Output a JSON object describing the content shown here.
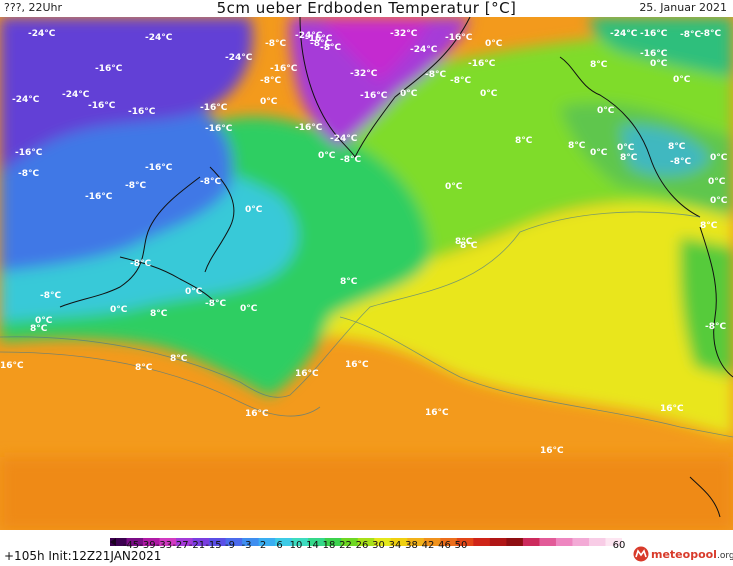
{
  "header": {
    "left_text": "???, 22Uhr",
    "title": "5cm ueber Erdboden Temperatur [°C]",
    "date": "25. Januar 2021"
  },
  "map": {
    "labels": [
      {
        "text": "-24°C"
      },
      {
        "text": "-24°C"
      },
      {
        "text": "-24°C"
      },
      {
        "text": "-16°C"
      },
      {
        "text": "-24°C"
      },
      {
        "text": "-24°C"
      },
      {
        "text": "-16°C"
      },
      {
        "text": "-16°C"
      },
      {
        "text": "-16°C"
      },
      {
        "text": "-16°C"
      },
      {
        "text": "-16°C"
      },
      {
        "text": "-8°C"
      },
      {
        "text": "-16°C"
      },
      {
        "text": "-8°C"
      },
      {
        "text": "-8°C"
      },
      {
        "text": "-16°C"
      },
      {
        "text": "-8°C"
      },
      {
        "text": "-24°C"
      },
      {
        "text": "-16°C"
      },
      {
        "text": "-8°C"
      },
      {
        "text": "-16°C"
      },
      {
        "text": "0°C"
      },
      {
        "text": "-16°C"
      },
      {
        "text": "-24°C"
      },
      {
        "text": "0°C"
      },
      {
        "text": "-8°C"
      },
      {
        "text": "-32°C"
      },
      {
        "text": "-24°C"
      },
      {
        "text": "-16°C"
      },
      {
        "text": "0°C"
      },
      {
        "text": "-32°C"
      },
      {
        "text": "-8°C"
      },
      {
        "text": "-8°C"
      },
      {
        "text": "-16°C"
      },
      {
        "text": "0°C"
      },
      {
        "text": "0°C"
      },
      {
        "text": "-16°C"
      },
      {
        "text": "-24°C"
      },
      {
        "text": "-16°C"
      },
      {
        "text": "-8°C"
      },
      {
        "text": "-8°C"
      },
      {
        "text": "-16°C"
      },
      {
        "text": "0°C"
      },
      {
        "text": "8°C"
      },
      {
        "text": "0°C"
      },
      {
        "text": "0°C"
      },
      {
        "text": "8°C"
      },
      {
        "text": "8°C"
      },
      {
        "text": "0°C"
      },
      {
        "text": "8°C"
      },
      {
        "text": "0°C"
      },
      {
        "text": "0°C"
      },
      {
        "text": "8°C"
      },
      {
        "text": "-8°C"
      },
      {
        "text": "0°C"
      },
      {
        "text": "0°C"
      },
      {
        "text": "8°C"
      },
      {
        "text": "0°C"
      },
      {
        "text": "8°C"
      },
      {
        "text": "0°C"
      },
      {
        "text": "8°C"
      },
      {
        "text": "8°C"
      },
      {
        "text": "-8°C"
      },
      {
        "text": "-8°C"
      },
      {
        "text": "0°C"
      },
      {
        "text": "-8°C"
      },
      {
        "text": "0°C"
      },
      {
        "text": "0°C"
      },
      {
        "text": "0°C"
      },
      {
        "text": "8°C"
      },
      {
        "text": "8°C"
      },
      {
        "text": "8°C"
      },
      {
        "text": "16°C"
      },
      {
        "text": "16°C"
      },
      {
        "text": "8°C"
      },
      {
        "text": "16°C"
      },
      {
        "text": "16°C"
      },
      {
        "text": "16°C"
      },
      {
        "text": "16°C"
      },
      {
        "text": "16°C"
      },
      {
        "text": "-8°C"
      },
      {
        "text": "-8°C"
      },
      {
        "text": "-8°C"
      }
    ]
  },
  "legend": {
    "ticks": [
      "-45",
      "-39",
      "-33",
      "-27",
      "-21",
      "-15",
      "-9",
      "-3",
      "2",
      "6",
      "10",
      "14",
      "18",
      "22",
      "26",
      "30",
      "34",
      "38",
      "42",
      "46",
      "50",
      "60"
    ],
    "colors": [
      "#3c0050",
      "#7a0d86",
      "#b01aa6",
      "#d23ac2",
      "#a43bd8",
      "#7a3ee0",
      "#5a4fe6",
      "#4b6bec",
      "#3f8ef0",
      "#3aaef2",
      "#3dcbe6",
      "#3ddcc0",
      "#35d88a",
      "#3cd24e",
      "#6ed824",
      "#a8e01a",
      "#e4e81c",
      "#f0d010",
      "#f2b21a",
      "#f0921c",
      "#ec6e1c",
      "#e24618",
      "#cf2418",
      "#b01616",
      "#8e0e12",
      "#cc2a5c",
      "#e25a98",
      "#ee86c0",
      "#f3aad6",
      "#f8cce6",
      "#fde6f2"
    ]
  },
  "footer": {
    "run_info": "+105h  Init:12Z21JAN2021",
    "logo_brand": "meteopool",
    "logo_suffix": ".org"
  },
  "colors": {
    "warm_orange": "#f39a1c",
    "yellow": "#e9e61d",
    "light_green": "#7fdc2c",
    "green": "#2fce62",
    "cyan": "#38c9d8",
    "blue": "#3f78e6",
    "violet": "#6240d6",
    "magenta": "#c42bd0"
  }
}
